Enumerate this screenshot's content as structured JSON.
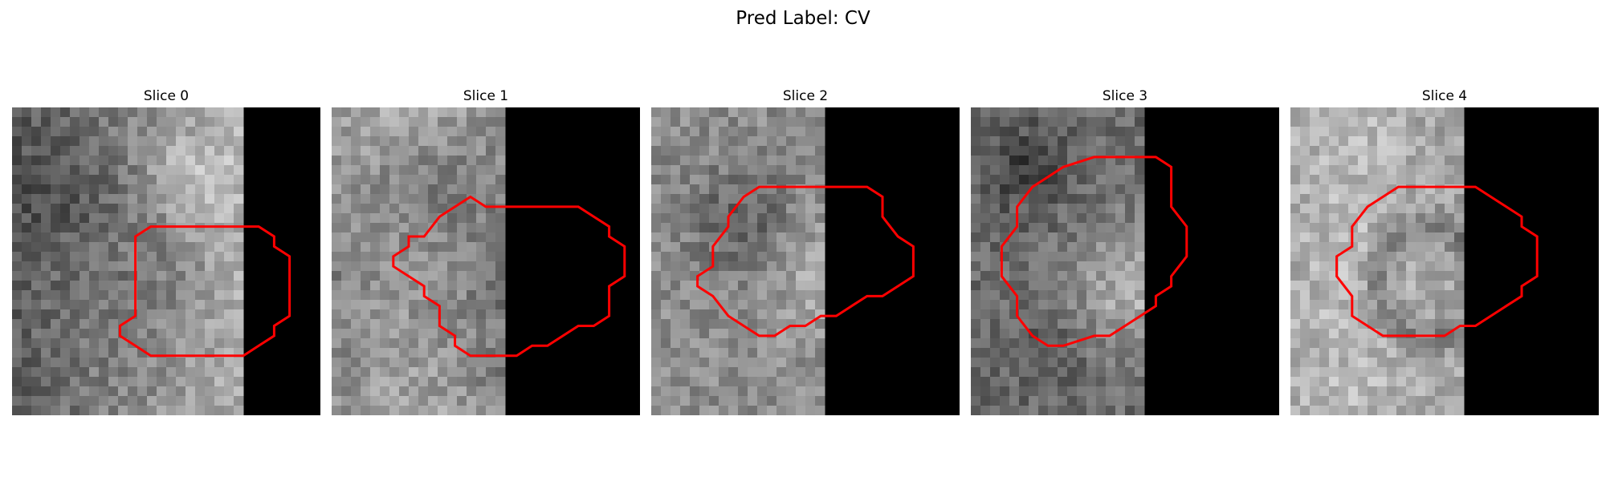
{
  "title": "Pred Label: CV",
  "contour_color": "#ff0000",
  "panels": [
    {
      "label": "Slice 0",
      "pattern": "texture-left-dark",
      "mask_start": 16,
      "contour": [
        [
          8,
          13
        ],
        [
          9,
          12
        ],
        [
          10,
          12
        ],
        [
          12,
          12
        ],
        [
          14,
          12
        ],
        [
          15,
          12
        ],
        [
          16,
          12
        ],
        [
          17,
          13
        ],
        [
          17,
          14
        ],
        [
          18,
          15
        ],
        [
          18,
          17
        ],
        [
          18,
          19
        ],
        [
          18,
          21
        ],
        [
          17,
          22
        ],
        [
          17,
          23
        ],
        [
          16,
          24
        ],
        [
          15,
          25
        ],
        [
          12,
          25
        ],
        [
          9,
          25
        ],
        [
          8,
          24
        ],
        [
          7,
          23
        ],
        [
          7,
          22
        ],
        [
          8,
          21
        ],
        [
          8,
          19
        ],
        [
          8,
          17
        ],
        [
          8,
          15
        ],
        [
          8,
          13
        ]
      ]
    },
    {
      "label": "Slice 1",
      "pattern": "texture-cv",
      "mask_start": 12,
      "contour": [
        [
          6,
          13
        ],
        [
          7,
          11
        ],
        [
          8,
          10
        ],
        [
          9,
          9
        ],
        [
          10,
          10
        ],
        [
          12,
          10
        ],
        [
          14,
          10
        ],
        [
          15,
          10
        ],
        [
          16,
          10
        ],
        [
          17,
          11
        ],
        [
          18,
          12
        ],
        [
          18,
          13
        ],
        [
          19,
          14
        ],
        [
          19,
          16
        ],
        [
          19,
          17
        ],
        [
          18,
          18
        ],
        [
          18,
          19
        ],
        [
          18,
          20
        ],
        [
          18,
          21
        ],
        [
          17,
          22
        ],
        [
          16,
          22
        ],
        [
          15,
          23
        ],
        [
          14,
          24
        ],
        [
          13,
          24
        ],
        [
          12,
          25
        ],
        [
          11,
          25
        ],
        [
          10,
          25
        ],
        [
          9,
          25
        ],
        [
          8,
          24
        ],
        [
          8,
          23
        ],
        [
          7,
          22
        ],
        [
          7,
          21
        ],
        [
          7,
          20
        ],
        [
          6,
          19
        ],
        [
          6,
          18
        ],
        [
          5,
          17
        ],
        [
          4,
          16
        ],
        [
          4,
          15
        ],
        [
          5,
          14
        ],
        [
          5,
          13
        ],
        [
          6,
          13
        ]
      ]
    },
    {
      "label": "Slice 2",
      "pattern": "texture-bright-center",
      "mask_start": 12,
      "contour": [
        [
          5,
          11
        ],
        [
          6,
          9
        ],
        [
          7,
          8
        ],
        [
          8,
          8
        ],
        [
          10,
          8
        ],
        [
          12,
          8
        ],
        [
          14,
          8
        ],
        [
          15,
          9
        ],
        [
          15,
          11
        ],
        [
          16,
          13
        ],
        [
          17,
          14
        ],
        [
          17,
          17
        ],
        [
          16,
          18
        ],
        [
          15,
          19
        ],
        [
          14,
          19
        ],
        [
          13,
          20
        ],
        [
          12,
          21
        ],
        [
          11,
          21
        ],
        [
          10,
          22
        ],
        [
          9,
          22
        ],
        [
          8,
          23
        ],
        [
          7,
          23
        ],
        [
          6,
          22
        ],
        [
          5,
          21
        ],
        [
          4,
          19
        ],
        [
          3,
          18
        ],
        [
          3,
          17
        ],
        [
          4,
          16
        ],
        [
          4,
          14
        ],
        [
          5,
          12
        ],
        [
          5,
          11
        ]
      ]
    },
    {
      "label": "Slice 3",
      "pattern": "texture-elongated",
      "mask_start": 12,
      "contour": [
        [
          4,
          8
        ],
        [
          5,
          7
        ],
        [
          6,
          6
        ],
        [
          8,
          5
        ],
        [
          10,
          5
        ],
        [
          12,
          5
        ],
        [
          13,
          6
        ],
        [
          13,
          8
        ],
        [
          13,
          10
        ],
        [
          14,
          12
        ],
        [
          14,
          15
        ],
        [
          13,
          17
        ],
        [
          13,
          18
        ],
        [
          12,
          19
        ],
        [
          12,
          20
        ],
        [
          11,
          21
        ],
        [
          10,
          22
        ],
        [
          9,
          23
        ],
        [
          8,
          23
        ],
        [
          6,
          24
        ],
        [
          5,
          24
        ],
        [
          4,
          23
        ],
        [
          3,
          21
        ],
        [
          3,
          19
        ],
        [
          2,
          17
        ],
        [
          2,
          14
        ],
        [
          3,
          12
        ],
        [
          3,
          10
        ],
        [
          4,
          8
        ]
      ]
    },
    {
      "label": "Slice 4",
      "pattern": "texture-ring",
      "mask_start": 12,
      "contour": [
        [
          5,
          10
        ],
        [
          6,
          9
        ],
        [
          7,
          8
        ],
        [
          9,
          8
        ],
        [
          11,
          8
        ],
        [
          12,
          8
        ],
        [
          13,
          9
        ],
        [
          14,
          10
        ],
        [
          15,
          11
        ],
        [
          15,
          12
        ],
        [
          16,
          13
        ],
        [
          16,
          15
        ],
        [
          16,
          17
        ],
        [
          15,
          18
        ],
        [
          15,
          19
        ],
        [
          14,
          20
        ],
        [
          13,
          21
        ],
        [
          12,
          22
        ],
        [
          11,
          22
        ],
        [
          10,
          23
        ],
        [
          9,
          23
        ],
        [
          7,
          23
        ],
        [
          6,
          23
        ],
        [
          5,
          22
        ],
        [
          4,
          21
        ],
        [
          4,
          19
        ],
        [
          3,
          17
        ],
        [
          3,
          15
        ],
        [
          4,
          14
        ],
        [
          4,
          12
        ],
        [
          5,
          10
        ]
      ]
    }
  ]
}
